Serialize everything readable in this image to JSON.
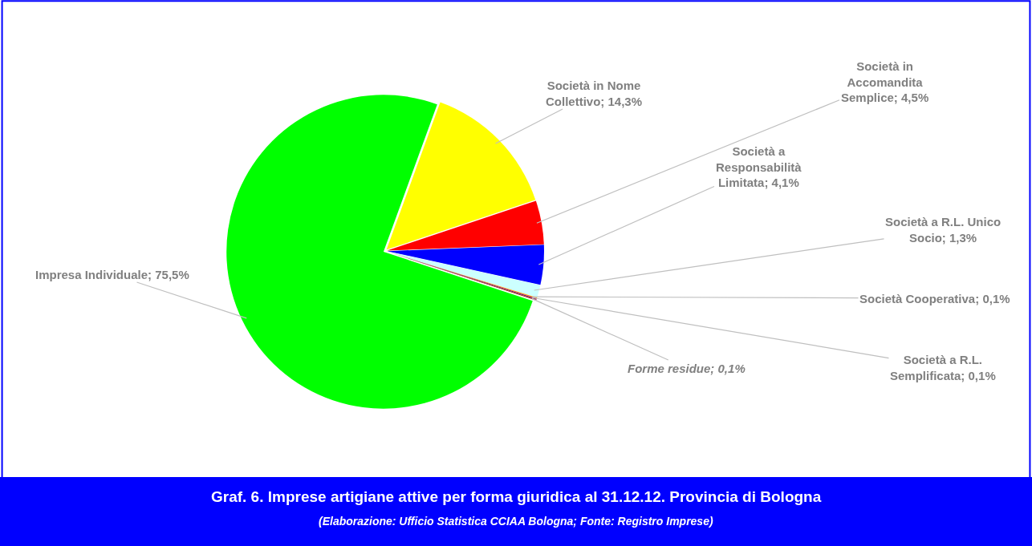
{
  "chart_data": {
    "type": "pie",
    "title": "Graf. 6. Imprese artigiane attive per forma giuridica al 31.12.12. Provincia di Bologna",
    "subtitle": "(Elaborazione: Ufficio Statistica CCIAA Bologna; Fonte: Registro Imprese)",
    "categories": [
      "Società in Nome Collettivo",
      "Società in Accomandita Semplice",
      "Società a Responsabilità Limitata",
      "Società a R.L. Unico Socio",
      "Società Cooperativa",
      "Società a R.L. Semplificata",
      "Forme residue",
      "Impresa Individuale"
    ],
    "values": [
      14.3,
      4.5,
      4.1,
      1.3,
      0.1,
      0.1,
      0.1,
      75.5
    ],
    "value_labels": [
      "14,3%",
      "4,5%",
      "4,1%",
      "1,3%",
      "0,1%",
      "0,1%",
      "0,1%",
      "75,5%"
    ],
    "colors": [
      "#ffff00",
      "#ff0000",
      "#0000ff",
      "#ccffff",
      "#ff9900",
      "#800080",
      "#993300",
      "#00ff00"
    ],
    "legend": false
  }
}
